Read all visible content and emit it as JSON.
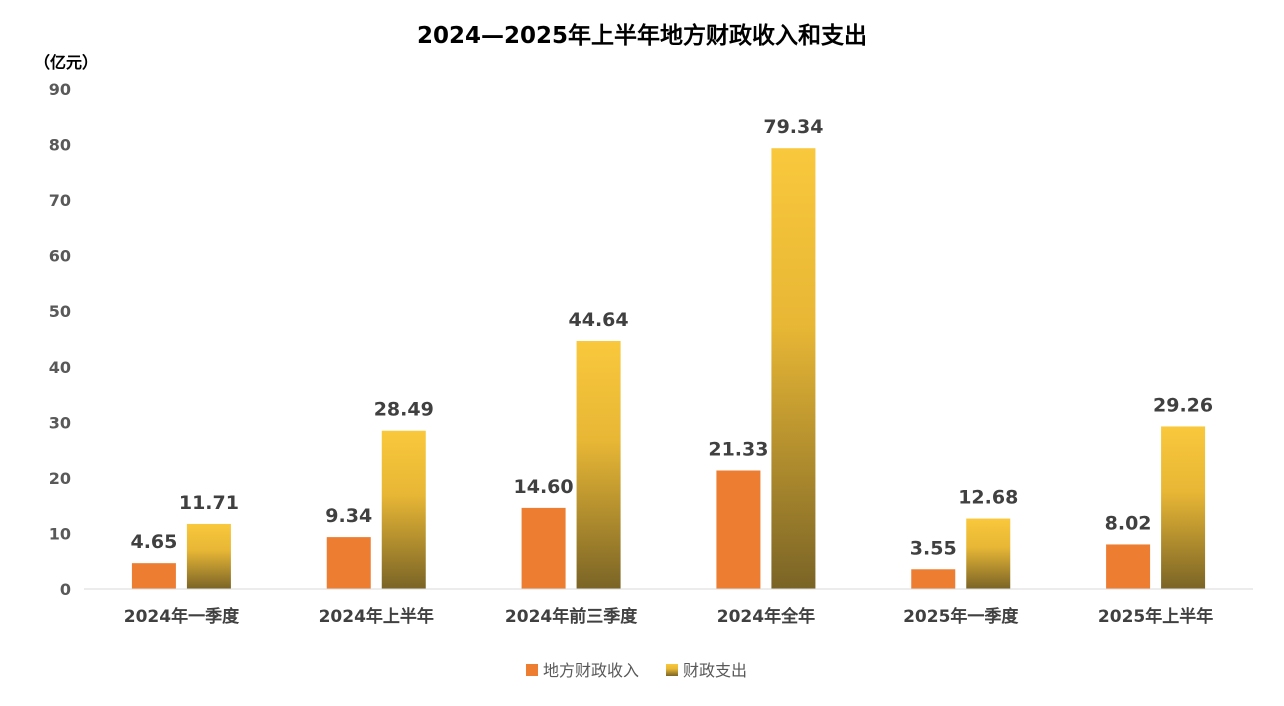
{
  "chart_data": {
    "type": "bar",
    "title": "2024—2025年上半年地方财政收入和支出",
    "ylabel": "（亿元）",
    "xlabel": "",
    "ylim": [
      0,
      90
    ],
    "yticks": [
      0,
      10,
      20,
      30,
      40,
      50,
      60,
      70,
      80,
      90
    ],
    "grid": false,
    "legend_position": "bottom",
    "categories": [
      "2024年一季度",
      "2024年上半年",
      "2024年前三季度",
      "2024年全年",
      "2025年一季度",
      "2025年上半年"
    ],
    "series": [
      {
        "name": "地方财政收入",
        "color": "#ED7D31",
        "values": [
          4.65,
          9.34,
          14.6,
          21.33,
          3.55,
          8.02
        ],
        "labels": [
          "4.65",
          "9.34",
          "14.60",
          "21.33",
          "3.55",
          "8.02"
        ]
      },
      {
        "name": "财政支出",
        "color": "#F9C83C",
        "color_bottom": "#7A6426",
        "values": [
          11.71,
          28.49,
          44.64,
          79.34,
          12.68,
          29.26
        ],
        "labels": [
          "11.71",
          "28.49",
          "44.64",
          "79.34",
          "12.68",
          "29.26"
        ]
      }
    ]
  }
}
